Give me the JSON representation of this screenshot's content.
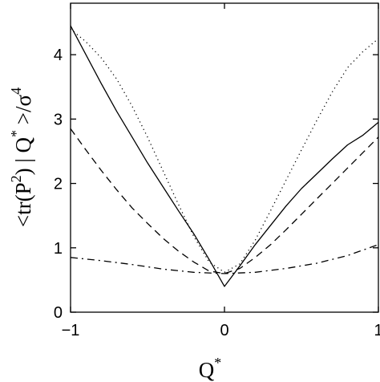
{
  "chart_data": {
    "type": "line",
    "xlabel": "Q",
    "xlabel_sup": "*",
    "ylabel_parts": {
      "open": "<tr(P",
      "sup_p": "2",
      "mid": ") | Q",
      "sup_q": "*",
      "close": " >/σ",
      "sup_sigma": "4"
    },
    "xlim": [
      -1,
      1
    ],
    "ylim": [
      0,
      4.8
    ],
    "xticks": [
      -1,
      0,
      1
    ],
    "xtick_labels": [
      "−1",
      "0",
      "1"
    ],
    "yticks": [
      0,
      1,
      2,
      3,
      4
    ],
    "ytick_labels": [
      "0",
      "1",
      "2",
      "3",
      "4"
    ],
    "grid": false,
    "legend": "none",
    "series": [
      {
        "style": "solid",
        "x": [
          -1.0,
          -0.9,
          -0.8,
          -0.7,
          -0.6,
          -0.5,
          -0.4,
          -0.3,
          -0.2,
          -0.1,
          0.0,
          0.1,
          0.2,
          0.3,
          0.4,
          0.5,
          0.6,
          0.7,
          0.8,
          0.9,
          1.0
        ],
        "y": [
          4.45,
          4.0,
          3.55,
          3.12,
          2.72,
          2.32,
          1.95,
          1.58,
          1.22,
          0.82,
          0.4,
          0.72,
          1.05,
          1.35,
          1.65,
          1.92,
          2.15,
          2.38,
          2.6,
          2.75,
          2.95
        ]
      },
      {
        "style": "dotted",
        "x": [
          -1.0,
          -0.9,
          -0.8,
          -0.7,
          -0.6,
          -0.5,
          -0.4,
          -0.3,
          -0.2,
          -0.1,
          0.0,
          0.1,
          0.2,
          0.3,
          0.4,
          0.5,
          0.6,
          0.7,
          0.8,
          0.9,
          1.0
        ],
        "y": [
          4.4,
          4.2,
          3.95,
          3.62,
          3.2,
          2.72,
          2.2,
          1.68,
          1.18,
          0.78,
          0.62,
          0.75,
          1.12,
          1.58,
          2.05,
          2.52,
          2.98,
          3.42,
          3.8,
          4.05,
          4.25
        ]
      },
      {
        "style": "dashed",
        "x": [
          -1.0,
          -0.9,
          -0.8,
          -0.7,
          -0.6,
          -0.5,
          -0.4,
          -0.3,
          -0.2,
          -0.1,
          0.0,
          0.1,
          0.2,
          0.3,
          0.4,
          0.5,
          0.6,
          0.7,
          0.8,
          0.9,
          1.0
        ],
        "y": [
          2.85,
          2.52,
          2.2,
          1.9,
          1.62,
          1.38,
          1.15,
          0.95,
          0.78,
          0.64,
          0.6,
          0.68,
          0.85,
          1.05,
          1.28,
          1.52,
          1.76,
          2.0,
          2.24,
          2.48,
          2.72
        ]
      },
      {
        "style": "dashdot",
        "x": [
          -1.0,
          -0.8,
          -0.6,
          -0.4,
          -0.2,
          0.0,
          0.2,
          0.4,
          0.6,
          0.8,
          1.0
        ],
        "y": [
          0.85,
          0.8,
          0.74,
          0.67,
          0.62,
          0.6,
          0.62,
          0.68,
          0.76,
          0.88,
          1.05
        ]
      }
    ]
  }
}
